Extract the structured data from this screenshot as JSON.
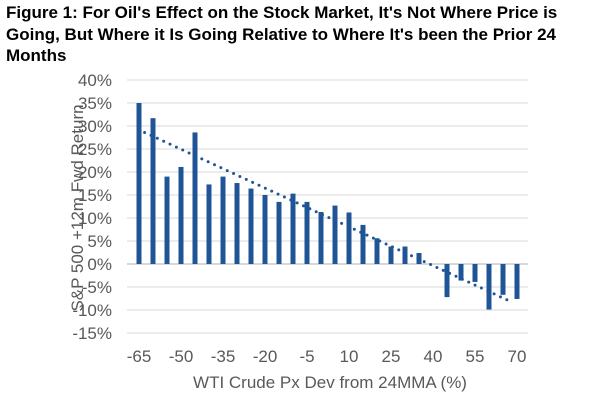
{
  "chart_data": {
    "type": "bar",
    "title": "Figure 1: For Oil's Effect on the Stock Market, It's Not Where Price is Going, But Where it Is Going Relative to Where It's been the Prior 24 Months",
    "xlabel": "WTI Crude Px Dev from 24MMA (%)",
    "ylabel": "S&P 500 +12m Fwd Return",
    "x": [
      -65,
      -60,
      -55,
      -50,
      -45,
      -40,
      -35,
      -30,
      -25,
      -20,
      -15,
      -10,
      -5,
      0,
      5,
      10,
      15,
      20,
      25,
      30,
      35,
      40,
      45,
      50,
      55,
      60,
      65,
      70
    ],
    "values": [
      35,
      31.7,
      19,
      21.1,
      28.6,
      17.3,
      19,
      17.6,
      16.4,
      15,
      13.5,
      15.3,
      13.5,
      11.3,
      12.7,
      11.2,
      8.5,
      5.6,
      3.8,
      3.8,
      2.4,
      0,
      -7.2,
      -3.6,
      -3.9,
      -9.9,
      -6.7,
      -7.6
    ],
    "xticks": [
      -65,
      -50,
      -35,
      -20,
      -5,
      10,
      25,
      40,
      55,
      70
    ],
    "yticks": [
      -15,
      -10,
      -5,
      0,
      5,
      10,
      15,
      20,
      25,
      30,
      35,
      40
    ],
    "ylim": [
      -15,
      40
    ],
    "xlim": [
      -65,
      70
    ],
    "grid": true,
    "trendline": {
      "type": "linear",
      "start": [
        -63,
        28.6
      ],
      "end": [
        68.6,
        -8.4
      ],
      "style": "dotted"
    },
    "colors": {
      "bar": "#1f5597",
      "grid": "#d9d9d9",
      "text": "#595959"
    }
  }
}
